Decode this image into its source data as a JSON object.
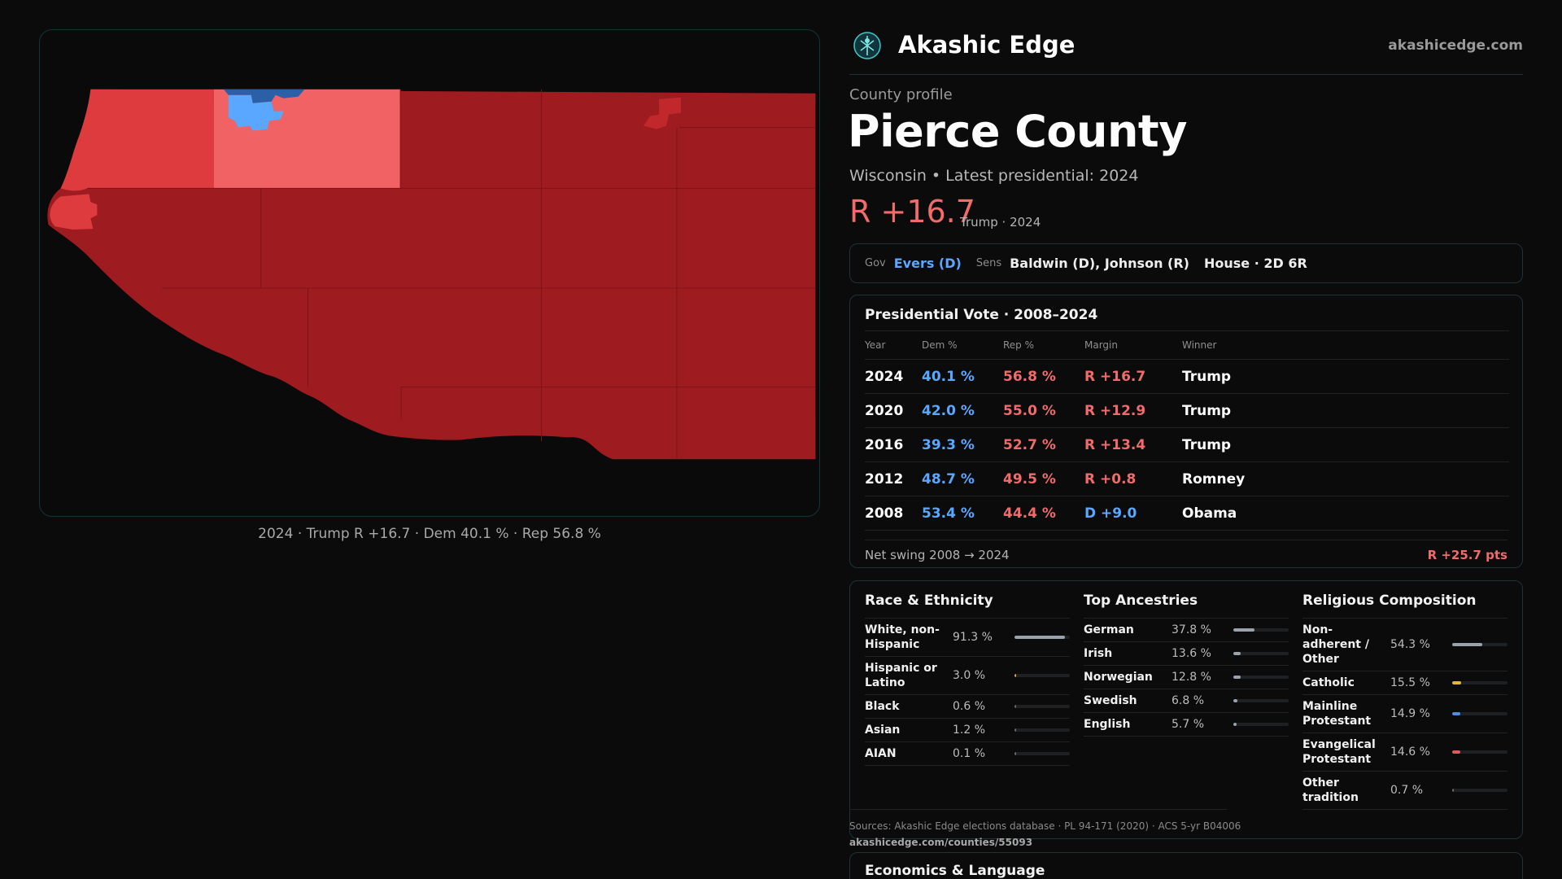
{
  "brand": {
    "name": "Akashic Edge",
    "url": "akashicedge.com"
  },
  "profile": {
    "eyebrow": "County profile",
    "county": "Pierce County",
    "subtitle": "Wisconsin • Latest presidential: 2024",
    "margin": "R +16.7",
    "margin_note": "Trump · 2024"
  },
  "officials": {
    "gov_label": "Gov",
    "gov_value": "Evers (D)",
    "sens_label": "Sens",
    "sens_value": "Baldwin (D), Johnson (R)",
    "house": "House · 2D 6R"
  },
  "map": {
    "caption": "2024 · Trump R +16.7 · Dem 40.1 % · Rep 56.8 %",
    "colors": {
      "strong_r": "#9e1b20",
      "mid_r": "#dd3b3e",
      "light_r": "#f06263",
      "dem": "#5aa7ff",
      "dem_dark": "#2b5fa8"
    }
  },
  "presidential": {
    "title": "Presidential Vote · 2008–2024",
    "headers": [
      "Year",
      "Dem %",
      "Rep %",
      "Margin",
      "Winner"
    ],
    "rows": [
      {
        "year": "2024",
        "dem": "40.1 %",
        "rep": "56.8 %",
        "margin": "R +16.7",
        "party": "r",
        "winner": "Trump"
      },
      {
        "year": "2020",
        "dem": "42.0 %",
        "rep": "55.0 %",
        "margin": "R +12.9",
        "party": "r",
        "winner": "Trump"
      },
      {
        "year": "2016",
        "dem": "39.3 %",
        "rep": "52.7 %",
        "margin": "R +13.4",
        "party": "r",
        "winner": "Trump"
      },
      {
        "year": "2012",
        "dem": "48.7 %",
        "rep": "49.5 %",
        "margin": "R +0.8",
        "party": "r",
        "winner": "Romney"
      },
      {
        "year": "2008",
        "dem": "53.4 %",
        "rep": "44.4 %",
        "margin": "D +9.0",
        "party": "d",
        "winner": "Obama"
      }
    ],
    "swing_label": "Net swing 2008 → 2024",
    "swing_value": "R +25.7 pts"
  },
  "race": {
    "title": "Race & Ethnicity",
    "items": [
      {
        "label": "White, non-Hispanic",
        "value": "91.3 %",
        "frac": 0.913,
        "color": "#9aa3ad"
      },
      {
        "label": "Hispanic or Latino",
        "value": "3.0 %",
        "frac": 0.03,
        "color": "#e8a13a"
      },
      {
        "label": "Black",
        "value": "0.6 %",
        "frac": 0.006,
        "color": "#6a6a6a"
      },
      {
        "label": "Asian",
        "value": "1.2 %",
        "frac": 0.012,
        "color": "#6a6a6a"
      },
      {
        "label": "AIAN",
        "value": "0.1 %",
        "frac": 0.001,
        "color": "#6a6a6a"
      }
    ]
  },
  "ancestry": {
    "title": "Top Ancestries",
    "items": [
      {
        "label": "German",
        "value": "37.8 %",
        "frac": 0.378,
        "color": "#9aa3ad"
      },
      {
        "label": "Irish",
        "value": "13.6 %",
        "frac": 0.136,
        "color": "#9aa3ad"
      },
      {
        "label": "Norwegian",
        "value": "12.8 %",
        "frac": 0.128,
        "color": "#9aa3ad"
      },
      {
        "label": "Swedish",
        "value": "6.8 %",
        "frac": 0.068,
        "color": "#9aa3ad"
      },
      {
        "label": "English",
        "value": "5.7 %",
        "frac": 0.057,
        "color": "#9aa3ad"
      }
    ]
  },
  "religion": {
    "title": "Religious Composition",
    "items": [
      {
        "label": "Non-adherent / Other",
        "value": "54.3 %",
        "frac": 0.543,
        "color": "#9aa3ad"
      },
      {
        "label": "Catholic",
        "value": "15.5 %",
        "frac": 0.155,
        "color": "#e8b43a"
      },
      {
        "label": "Mainline Protestant",
        "value": "14.9 %",
        "frac": 0.149,
        "color": "#4f8fe0"
      },
      {
        "label": "Evangelical Protestant",
        "value": "14.6 %",
        "frac": 0.146,
        "color": "#e05a5a"
      },
      {
        "label": "Other tradition",
        "value": "0.7 %",
        "frac": 0.007,
        "color": "#6a6a6a"
      }
    ]
  },
  "sources": {
    "text": "Sources: Akashic Edge elections database · PL 94-171 (2020) · ACS 5-yr B04006",
    "url": "akashicedge.com/counties/55093"
  },
  "economics": {
    "title": "Economics & Language"
  }
}
